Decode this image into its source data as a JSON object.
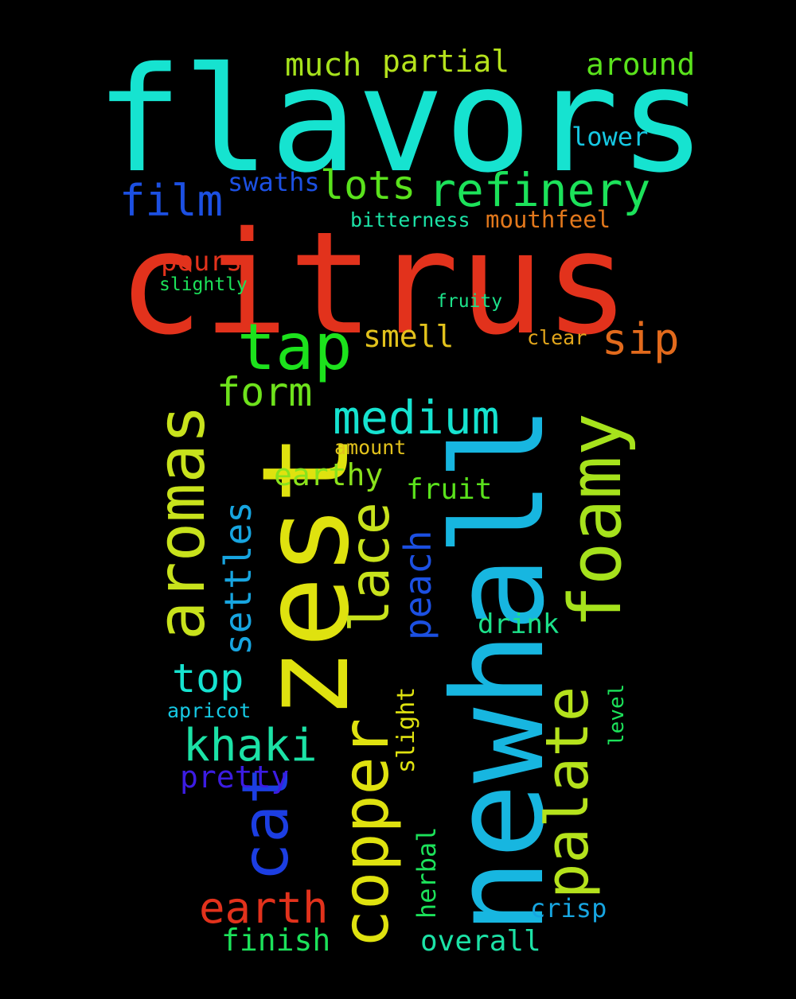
{
  "words": [
    {
      "text": "flavors",
      "color": "#16e3d0"
    },
    {
      "text": "citrus",
      "color": "#e2321c"
    },
    {
      "text": "newhall",
      "color": "#17b6e0"
    },
    {
      "text": "zest",
      "color": "#dfe20f"
    },
    {
      "text": "aromas",
      "color": "#c8e21c"
    },
    {
      "text": "foamy",
      "color": "#a6e21c"
    },
    {
      "text": "copper",
      "color": "#dfe20f"
    },
    {
      "text": "palate",
      "color": "#b5e21c"
    },
    {
      "text": "lace",
      "color": "#c8e21c"
    },
    {
      "text": "cat",
      "color": "#1c3ee2"
    },
    {
      "text": "refinery",
      "color": "#1ce25a"
    },
    {
      "text": "tap",
      "color": "#1ce21c"
    },
    {
      "text": "medium",
      "color": "#16e3d0"
    },
    {
      "text": "lots",
      "color": "#5ae21c"
    },
    {
      "text": "film",
      "color": "#1c50e2"
    },
    {
      "text": "earth",
      "color": "#e2321c"
    },
    {
      "text": "khaki",
      "color": "#1ce2a6"
    },
    {
      "text": "settles",
      "color": "#17a5e0"
    },
    {
      "text": "form",
      "color": "#6ee21c"
    },
    {
      "text": "top",
      "color": "#16e3d0"
    },
    {
      "text": "peach",
      "color": "#1c50e2"
    },
    {
      "text": "sip",
      "color": "#e26a1c"
    },
    {
      "text": "much",
      "color": "#a6e21c"
    },
    {
      "text": "partial",
      "color": "#b5e21c"
    },
    {
      "text": "around",
      "color": "#5ae21c"
    },
    {
      "text": "smell",
      "color": "#e2c21c"
    },
    {
      "text": "earthy",
      "color": "#8ae21c"
    },
    {
      "text": "pretty",
      "color": "#3c1ce2"
    },
    {
      "text": "finish",
      "color": "#1ce25a"
    },
    {
      "text": "fruit",
      "color": "#5ae21c"
    },
    {
      "text": "overall",
      "color": "#1ce2a6"
    },
    {
      "text": "drink",
      "color": "#1ce28a"
    },
    {
      "text": "pours",
      "color": "#e2321c"
    },
    {
      "text": "slight",
      "color": "#dfe20f"
    },
    {
      "text": "herbal",
      "color": "#1ce25a"
    },
    {
      "text": "crisp",
      "color": "#17a5e0"
    },
    {
      "text": "swaths",
      "color": "#1c50e2"
    },
    {
      "text": "mouthfeel",
      "color": "#e2781c"
    },
    {
      "text": "lower",
      "color": "#16c8e3"
    },
    {
      "text": "bitterness",
      "color": "#1ce2a6"
    },
    {
      "text": "clear",
      "color": "#e2a61c"
    },
    {
      "text": "amount",
      "color": "#e2c21c"
    },
    {
      "text": "apricot",
      "color": "#16c8e3"
    },
    {
      "text": "level",
      "color": "#1ce25a"
    },
    {
      "text": "slightly",
      "color": "#1ce25a"
    },
    {
      "text": "fruity",
      "color": "#1ce28a"
    }
  ]
}
